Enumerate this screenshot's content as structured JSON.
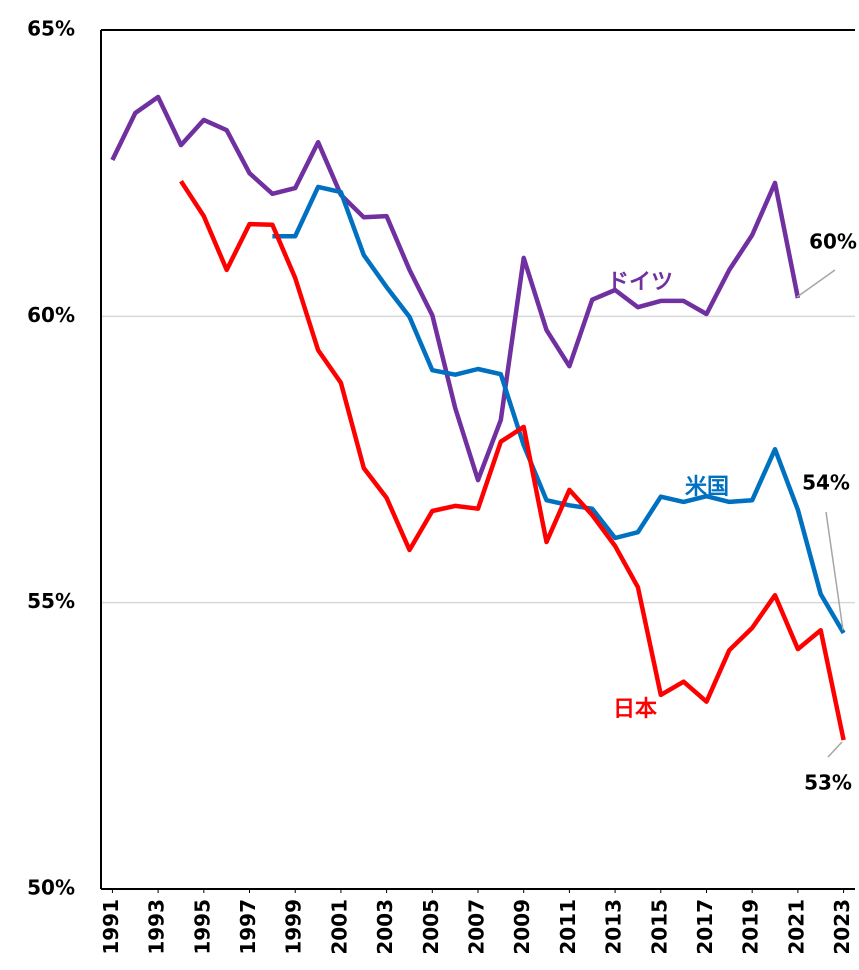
{
  "chart_data": {
    "type": "line",
    "x": [
      1991,
      1992,
      1993,
      1994,
      1995,
      1996,
      1997,
      1998,
      1999,
      2000,
      2001,
      2002,
      2003,
      2004,
      2005,
      2006,
      2007,
      2008,
      2009,
      2010,
      2011,
      2012,
      2013,
      2014,
      2015,
      2016,
      2017,
      2018,
      2019,
      2020,
      2021,
      2022,
      2023
    ],
    "xlim": [
      1990.5,
      2023.5
    ],
    "xticks": [
      1991,
      1993,
      1995,
      1997,
      1999,
      2001,
      2003,
      2005,
      2007,
      2009,
      2011,
      2013,
      2015,
      2017,
      2019,
      2021,
      2023
    ],
    "ylim": [
      50,
      65
    ],
    "yticks": [
      {
        "value": 50,
        "label": "50%"
      },
      {
        "value": 55,
        "label": "55%"
      },
      {
        "value": 60,
        "label": "60%"
      },
      {
        "value": 65,
        "label": "65%"
      }
    ],
    "grid": true,
    "series": [
      {
        "name": "ドイツ",
        "color": "#7030a0",
        "end_label": "60%",
        "values": [
          62.73,
          63.55,
          63.83,
          62.99,
          63.43,
          63.25,
          62.5,
          62.14,
          62.24,
          63.04,
          62.12,
          61.73,
          61.75,
          60.81,
          60.02,
          58.4,
          57.14,
          58.19,
          61.02,
          59.76,
          59.13,
          60.29,
          60.46,
          60.16,
          60.27,
          60.27,
          60.04,
          60.81,
          61.42,
          62.33,
          60.32,
          null,
          null
        ]
      },
      {
        "name": "米国",
        "color": "#0070c0",
        "end_label": "54%",
        "values": [
          null,
          null,
          null,
          null,
          null,
          null,
          null,
          61.4,
          61.4,
          62.26,
          62.17,
          61.07,
          60.51,
          59.99,
          59.06,
          58.98,
          59.08,
          58.99,
          57.75,
          56.79,
          56.7,
          56.64,
          56.13,
          56.23,
          56.85,
          56.76,
          56.86,
          56.76,
          56.79,
          57.68,
          56.62,
          55.15,
          54.47
        ]
      },
      {
        "name": "日本",
        "color": "#ff0000",
        "end_label": "53%",
        "values": [
          null,
          null,
          null,
          62.36,
          61.75,
          60.81,
          61.61,
          61.6,
          60.67,
          59.41,
          58.84,
          57.35,
          56.83,
          55.92,
          56.6,
          56.69,
          56.64,
          57.81,
          58.07,
          56.06,
          56.97,
          56.53,
          55.99,
          55.27,
          53.39,
          53.62,
          53.27,
          54.17,
          54.56,
          55.13,
          54.19,
          54.52,
          52.6
        ]
      }
    ]
  }
}
